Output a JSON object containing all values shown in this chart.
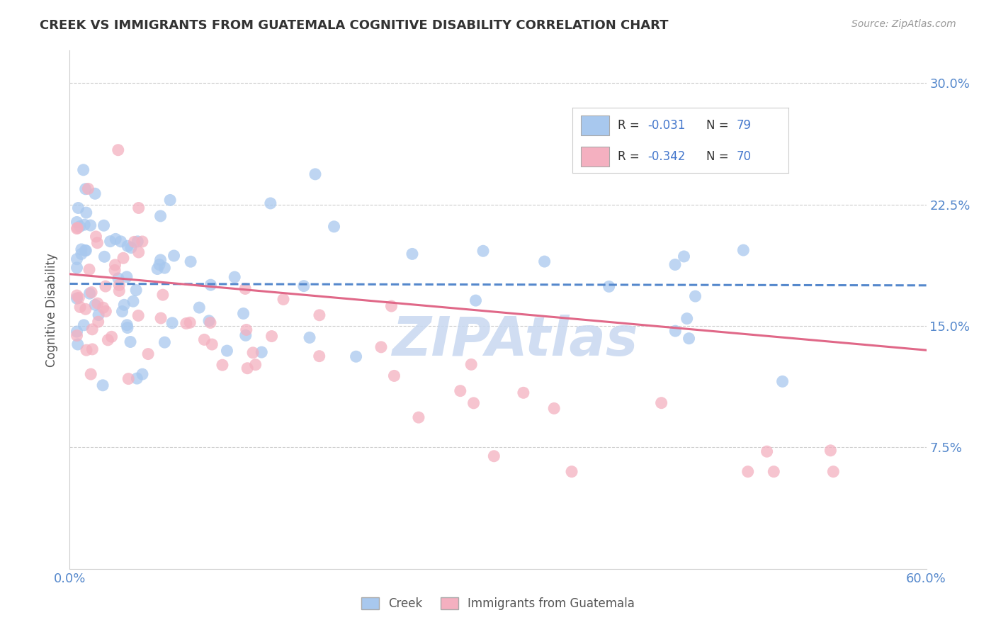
{
  "title": "CREEK VS IMMIGRANTS FROM GUATEMALA COGNITIVE DISABILITY CORRELATION CHART",
  "source_text": "Source: ZipAtlas.com",
  "ylabel": "Cognitive Disability",
  "xlim": [
    0.0,
    0.6
  ],
  "ylim": [
    0.0,
    0.32
  ],
  "ytick_labels": [
    "7.5%",
    "15.0%",
    "22.5%",
    "30.0%"
  ],
  "ytick_values": [
    0.075,
    0.15,
    0.225,
    0.3
  ],
  "background_color": "#ffffff",
  "watermark_text": "ZIPAtlas",
  "watermark_color": "#c8d8f0",
  "creek_color": "#a8c8ee",
  "creek_line_color": "#5588cc",
  "guatemala_color": "#f4b0c0",
  "guatemala_line_color": "#e06888",
  "legend_r_creek": "-0.031",
  "legend_n_creek": "79",
  "legend_r_guatemala": "-0.342",
  "legend_n_guatemala": "70",
  "legend_text_color": "#333333",
  "legend_value_color": "#4477cc",
  "grid_color": "#cccccc",
  "title_color": "#333333",
  "axis_label_color": "#5588cc",
  "creek_seed": 101,
  "guatemala_seed": 202
}
